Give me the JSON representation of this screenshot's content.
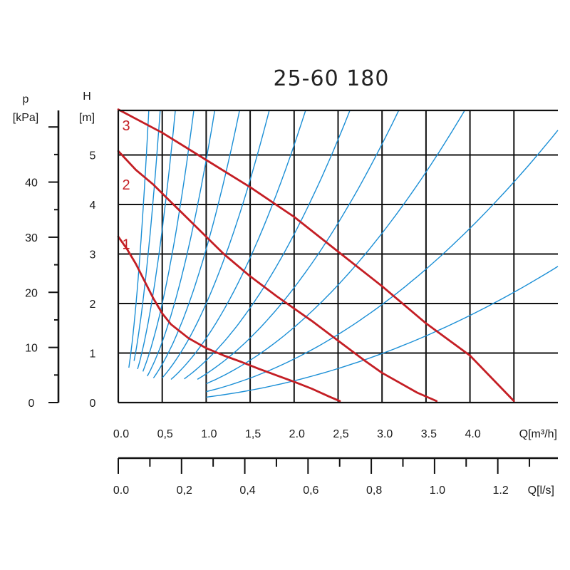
{
  "chart_data": {
    "type": "line",
    "title": "25-60 180",
    "grid": true,
    "y_axis_left_pressure": {
      "label": "p",
      "unit": "[kPa]",
      "ticks": [
        "0",
        "10",
        "20",
        "30",
        "40"
      ],
      "tick_values": [
        0,
        10,
        20,
        30,
        40
      ],
      "range": [
        0,
        53
      ]
    },
    "y_axis_head": {
      "label": "H",
      "unit": "[m]",
      "ticks": [
        "0",
        "1",
        "2",
        "3",
        "4",
        "5"
      ],
      "tick_values": [
        0,
        1,
        2,
        3,
        4,
        5
      ],
      "range": [
        0,
        5.9
      ]
    },
    "x_axis_flow_m3h": {
      "label": "Q[m³/h]",
      "ticks": [
        "0.0",
        "0,5",
        "1.0",
        "1,5",
        "2.0",
        "2,5",
        "3.0",
        "3.5",
        "4.0"
      ],
      "tick_values": [
        0,
        0.5,
        1.0,
        1.5,
        2.0,
        2.5,
        3.0,
        3.5,
        4.0
      ],
      "range": [
        0,
        5
      ]
    },
    "x_axis_flow_ls": {
      "label": "Q[l/s]",
      "ticks": [
        "0.0",
        "0,2",
        "0,4",
        "0,6",
        "0,8",
        "1.0",
        "1.2"
      ],
      "tick_values": [
        0,
        0.2,
        0.4,
        0.6,
        0.8,
        1.0,
        1.2
      ],
      "range": [
        0,
        1.39
      ]
    },
    "series": [
      {
        "name": "1",
        "color": "#c41e24",
        "x": [
          0,
          0.1,
          0.2,
          0.3,
          0.4,
          0.5,
          0.6,
          0.8,
          1.0,
          1.2,
          1.4,
          1.6,
          1.8,
          2.0,
          2.2,
          2.4,
          2.52
        ],
        "y": [
          3.35,
          3.1,
          2.8,
          2.45,
          2.1,
          1.8,
          1.58,
          1.3,
          1.1,
          0.95,
          0.82,
          0.68,
          0.55,
          0.42,
          0.28,
          0.12,
          0.03
        ]
      },
      {
        "name": "2",
        "color": "#c41e24",
        "x": [
          0,
          0.2,
          0.4,
          0.6,
          0.8,
          1.0,
          1.2,
          1.5,
          1.8,
          2.0,
          2.2,
          2.5,
          2.8,
          3.0,
          3.2,
          3.4,
          3.62
        ],
        "y": [
          5.08,
          4.7,
          4.4,
          4.05,
          3.7,
          3.35,
          3.0,
          2.55,
          2.15,
          1.9,
          1.65,
          1.25,
          0.85,
          0.6,
          0.4,
          0.2,
          0.03
        ]
      },
      {
        "name": "3",
        "color": "#c41e24",
        "x": [
          0,
          0.5,
          1.0,
          1.5,
          2.0,
          2.5,
          3.0,
          3.5,
          4.0,
          4.5
        ],
        "y": [
          5.92,
          5.45,
          4.9,
          4.35,
          3.75,
          3.05,
          2.35,
          1.6,
          0.95,
          0.03
        ]
      }
    ],
    "system_curves": [
      {
        "k": 49.0,
        "x_start": 0.12
      },
      {
        "k": 26.0,
        "x_start": 0.18
      },
      {
        "k": 14.0,
        "x_start": 0.22
      },
      {
        "k": 8.0,
        "x_start": 0.28
      },
      {
        "k": 4.9,
        "x_start": 0.33
      },
      {
        "k": 3.1,
        "x_start": 0.4
      },
      {
        "k": 2.0,
        "x_start": 0.5
      },
      {
        "k": 1.3,
        "x_start": 0.6
      },
      {
        "k": 0.85,
        "x_start": 0.75
      },
      {
        "k": 0.58,
        "x_start": 0.9
      },
      {
        "k": 0.38,
        "x_start": 1.0
      },
      {
        "k": 0.22,
        "x_start": 1.0
      },
      {
        "k": 0.11,
        "x_start": 1.0
      }
    ],
    "system_curve_color": "#1b8fd6",
    "series_label_positions": {
      "1": 3.2,
      "2": 4.4,
      "3": 5.6
    }
  }
}
